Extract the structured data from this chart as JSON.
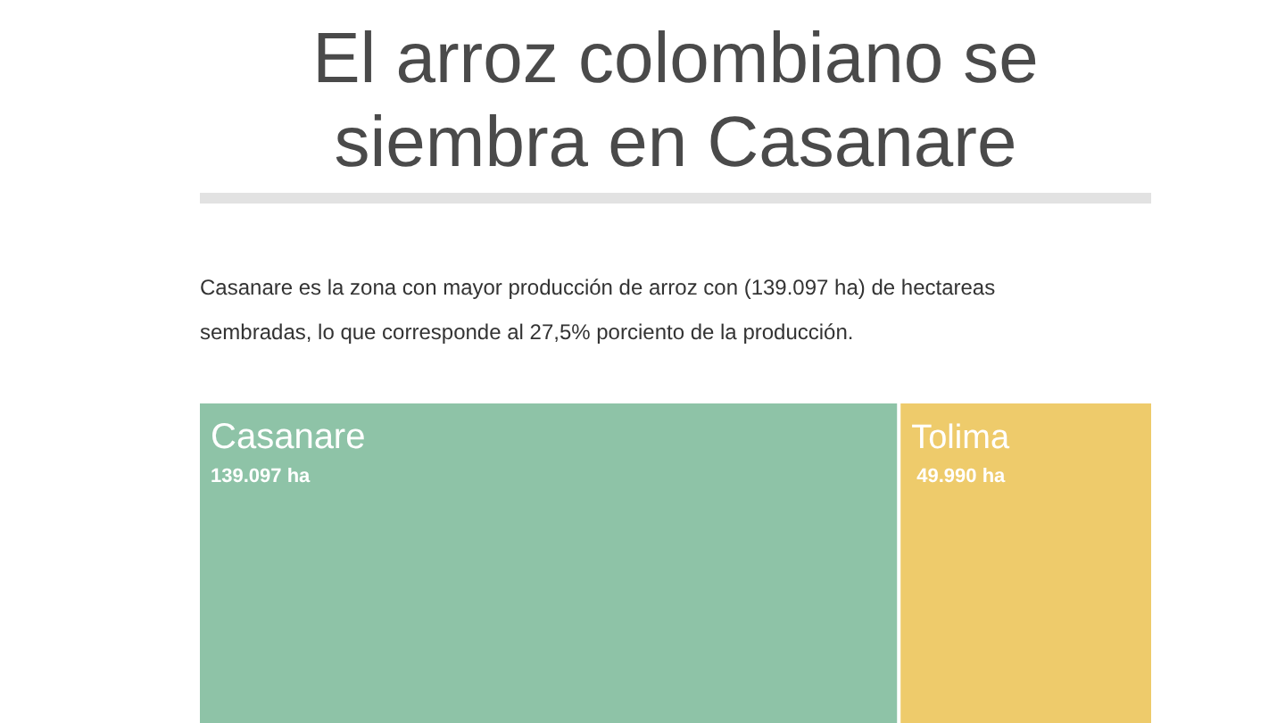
{
  "chart_data": {
    "type": "other",
    "title": "El arroz colombiano se siembra en Casanare",
    "subtitle": "Casanare es la zona con mayor producción de arroz con (139.097 ha) de  hectareas sembradas, lo que corresponde al  27,5% porciento de la producción.",
    "categories": [
      "Casanare",
      "Tolima"
    ],
    "values": [
      139097,
      49990
    ],
    "value_labels": [
      "139.097 ha",
      "49.990 ha"
    ],
    "colors": [
      "#8ec3a7",
      "#eecb6b"
    ]
  }
}
